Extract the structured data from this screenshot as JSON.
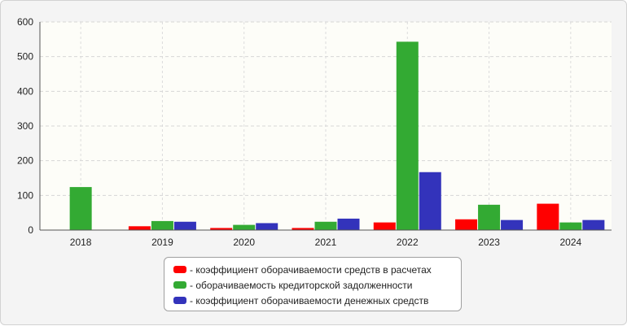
{
  "chart_data": {
    "type": "bar",
    "categories": [
      "2018",
      "2019",
      "2020",
      "2021",
      "2022",
      "2023",
      "2024"
    ],
    "series": [
      {
        "name": "коэффициент оборачиваемости средств в расчетах",
        "color": "#ff0000",
        "values": [
          0,
          11,
          6,
          6,
          22,
          31,
          76
        ]
      },
      {
        "name": "оборачиваемость кредиторской задолженности",
        "color": "#33aa33",
        "values": [
          124,
          26,
          15,
          24,
          543,
          73,
          22
        ]
      },
      {
        "name": "коэффициент оборачиваемости денежных средств",
        "color": "#3333bb",
        "values": [
          0,
          24,
          20,
          33,
          167,
          29,
          29
        ]
      }
    ],
    "ylim": [
      0,
      600
    ],
    "yticks": [
      "0",
      "100",
      "200",
      "300",
      "400",
      "500",
      "600"
    ],
    "legend_prefix": "-",
    "grid": true,
    "legend_position": "bottom"
  }
}
